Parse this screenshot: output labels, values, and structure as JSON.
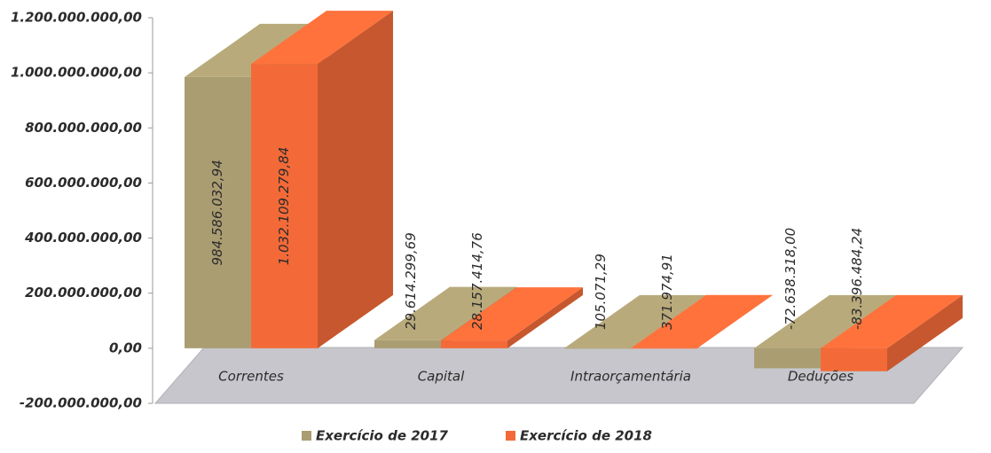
{
  "chart_data": {
    "type": "bar3d",
    "categories": [
      "Correntes",
      "Capital",
      "Intraorçamentária",
      "Deduções"
    ],
    "series": [
      {
        "name": "Exercício de 2017",
        "color": "#ab9d72",
        "values": [
          984586032.94,
          29614299.69,
          105071.29,
          -72638318.0
        ],
        "value_labels": [
          "984.586.032,94",
          "29.614.299,69",
          "105.071,29",
          "-72.638.318,00"
        ]
      },
      {
        "name": "Exercício de 2018",
        "color": "#f36a38",
        "values": [
          1032109279.84,
          28157414.76,
          371974.91,
          -83396484.24
        ],
        "value_labels": [
          "1.032.109.279,84",
          "28.157.414,76",
          "371.974,91",
          "-83.396.484,24"
        ]
      }
    ],
    "ylim": [
      -200000000,
      1200000000
    ],
    "yticks": [
      {
        "value": -200000000,
        "label": "-200.000.000,00"
      },
      {
        "value": 0,
        "label": "0,00"
      },
      {
        "value": 200000000,
        "label": "200.000.000,00"
      },
      {
        "value": 400000000,
        "label": "400.000.000,00"
      },
      {
        "value": 600000000,
        "label": "600.000.000,00"
      },
      {
        "value": 800000000,
        "label": "800.000.000,00"
      },
      {
        "value": 1000000000,
        "label": "1.000.000.000,00"
      },
      {
        "value": 1200000000,
        "label": "1.200.000.000,00"
      }
    ],
    "legend": "bottom"
  }
}
